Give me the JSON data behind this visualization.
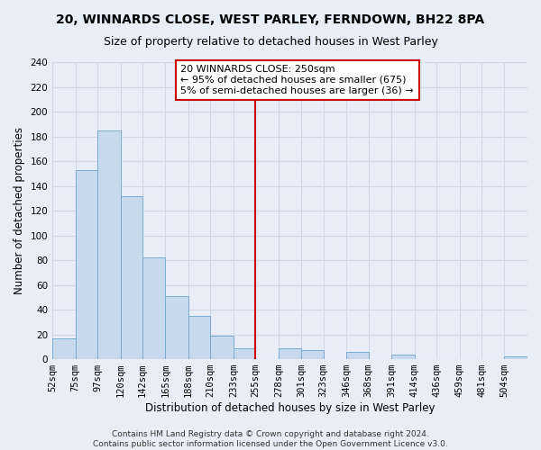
{
  "title": "20, WINNARDS CLOSE, WEST PARLEY, FERNDOWN, BH22 8PA",
  "subtitle": "Size of property relative to detached houses in West Parley",
  "xlabel": "Distribution of detached houses by size in West Parley",
  "ylabel": "Number of detached properties",
  "bar_color": "#c8d9ee",
  "bar_edge_color": "#7aadd4",
  "bin_labels": [
    "52sqm",
    "75sqm",
    "97sqm",
    "120sqm",
    "142sqm",
    "165sqm",
    "188sqm",
    "210sqm",
    "233sqm",
    "255sqm",
    "278sqm",
    "301sqm",
    "323sqm",
    "346sqm",
    "368sqm",
    "391sqm",
    "414sqm",
    "436sqm",
    "459sqm",
    "481sqm",
    "504sqm"
  ],
  "bin_edges": [
    52,
    75,
    97,
    120,
    142,
    165,
    188,
    210,
    233,
    255,
    278,
    301,
    323,
    346,
    368,
    391,
    414,
    436,
    459,
    481,
    504
  ],
  "counts": [
    17,
    153,
    185,
    132,
    82,
    51,
    35,
    19,
    9,
    0,
    9,
    7,
    0,
    6,
    0,
    4,
    0,
    0,
    0,
    0,
    2
  ],
  "vline_x": 255,
  "vline_color": "#cc0000",
  "ylim": [
    0,
    240
  ],
  "yticks": [
    0,
    20,
    40,
    60,
    80,
    100,
    120,
    140,
    160,
    180,
    200,
    220,
    240
  ],
  "annotation_text_line1": "20 WINNARDS CLOSE: 250sqm",
  "annotation_text_line2": "← 95% of detached houses are smaller (675)",
  "annotation_text_line3": "5% of semi-detached houses are larger (36) →",
  "footer_line1": "Contains HM Land Registry data © Crown copyright and database right 2024.",
  "footer_line2": "Contains public sector information licensed under the Open Government Licence v3.0.",
  "background_color": "#e8eef8",
  "grid_color": "#d0d8e8",
  "title_fontsize": 10,
  "subtitle_fontsize": 9,
  "axis_label_fontsize": 8.5,
  "tick_fontsize": 7.5,
  "footer_fontsize": 6.5
}
